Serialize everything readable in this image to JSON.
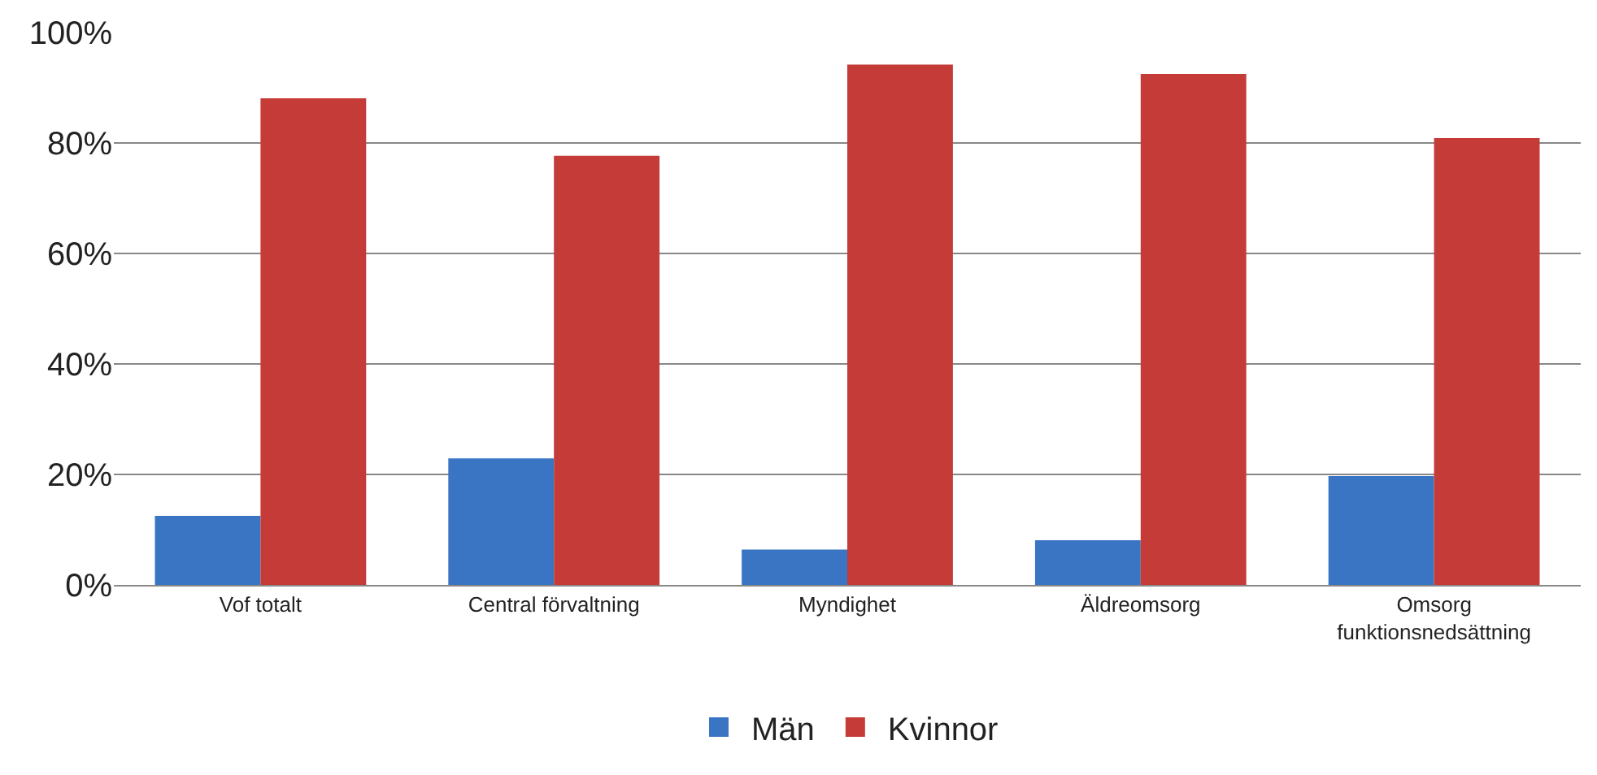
{
  "chart_data": {
    "type": "bar",
    "categories": [
      "Vof totalt",
      "Central förvaltning",
      "Myndighet",
      "Äldreomsorg",
      "Omsorg funktionsnedsättning"
    ],
    "series": [
      {
        "name": "Män",
        "color": "#3a75c4",
        "values": [
          12.5,
          22.9,
          6.4,
          8.1,
          19.7
        ]
      },
      {
        "name": "Kvinnor",
        "color": "#c43b37",
        "values": [
          88.1,
          77.7,
          94.2,
          92.5,
          80.9
        ]
      }
    ],
    "ylim": [
      0,
      100
    ],
    "yticks": [
      {
        "value": 0,
        "label": "0%"
      },
      {
        "value": 20,
        "label": "20%"
      },
      {
        "value": 40,
        "label": "40%"
      },
      {
        "value": 60,
        "label": "60%"
      },
      {
        "value": 80,
        "label": "80%"
      },
      {
        "value": 100,
        "label": "100%"
      }
    ],
    "grid": "y",
    "legend": "bottom"
  }
}
